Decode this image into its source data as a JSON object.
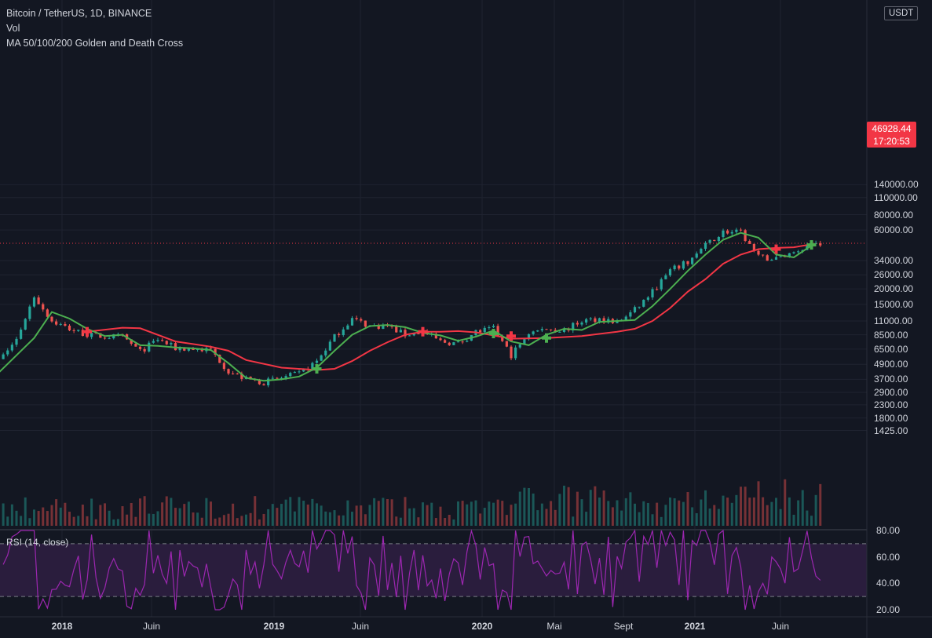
{
  "header": {
    "symbol_line": "Bitcoin / TetherUS, 1D, BINANCE",
    "volume_label": "Vol",
    "indicator_label": "MA 50/100/200 Golden and Death Cross"
  },
  "currency": "USDT",
  "last_price": "46928.44",
  "countdown": "17:20:53",
  "colors": {
    "background": "#131722",
    "up": "#26a69a",
    "down": "#ef5350",
    "ma_fast": "#4caf50",
    "ma_slow": "#f23645",
    "rsi": "#9c27b0",
    "rsi_band": "#2a1d3d"
  },
  "rsi": {
    "label": "RSI (14, close)",
    "ticks": [
      "80.00",
      "60.00",
      "40.00",
      "20.00"
    ],
    "upper": 70,
    "lower": 30
  },
  "chart_data": {
    "type": "line",
    "scale": "log",
    "y_ticks": [
      "140000.00",
      "110000.00",
      "80000.00",
      "60000.00",
      "46928.44",
      "34000.00",
      "26000.00",
      "20000.00",
      "15000.00",
      "11000.00",
      "8500.00",
      "6500.00",
      "4900.00",
      "3700.00",
      "2900.00",
      "2300.00",
      "1800.00",
      "1425.00"
    ],
    "x_ticks": [
      "2018",
      "Juin",
      "2019",
      "Juin",
      "2020",
      "Mai",
      "Sept",
      "2021",
      "Juin"
    ],
    "price_points": [
      [
        "2017-09",
        4200
      ],
      [
        "2017-10",
        5200
      ],
      [
        "2017-11",
        7800
      ],
      [
        "2017-12",
        17500
      ],
      [
        "2018-01",
        11000
      ],
      [
        "2018-02",
        9500
      ],
      [
        "2018-03",
        8500
      ],
      [
        "2018-04",
        8200
      ],
      [
        "2018-05",
        8200
      ],
      [
        "2018-06",
        6200
      ],
      [
        "2018-07",
        7800
      ],
      [
        "2018-08",
        6600
      ],
      [
        "2018-09",
        6500
      ],
      [
        "2018-10",
        6400
      ],
      [
        "2018-11",
        4300
      ],
      [
        "2018-12",
        3700
      ],
      [
        "2019-01",
        3500
      ],
      [
        "2019-02",
        3800
      ],
      [
        "2019-03",
        4100
      ],
      [
        "2019-04",
        5200
      ],
      [
        "2019-05",
        8200
      ],
      [
        "2019-06",
        11500
      ],
      [
        "2019-07",
        10000
      ],
      [
        "2019-08",
        10000
      ],
      [
        "2019-09",
        8500
      ],
      [
        "2019-10",
        9000
      ],
      [
        "2019-11",
        7500
      ],
      [
        "2019-12",
        7200
      ],
      [
        "2020-01",
        9000
      ],
      [
        "2020-02",
        9500
      ],
      [
        "2020-03",
        5800
      ],
      [
        "2020-04",
        8800
      ],
      [
        "2020-05",
        9500
      ],
      [
        "2020-06",
        9200
      ],
      [
        "2020-07",
        11000
      ],
      [
        "2020-08",
        11500
      ],
      [
        "2020-09",
        10700
      ],
      [
        "2020-10",
        13500
      ],
      [
        "2020-11",
        19000
      ],
      [
        "2020-12",
        28000
      ],
      [
        "2021-01",
        33000
      ],
      [
        "2021-02",
        45000
      ],
      [
        "2021-03",
        58000
      ],
      [
        "2021-04",
        57000
      ],
      [
        "2021-05",
        36000
      ],
      [
        "2021-06",
        35000
      ],
      [
        "2021-07",
        40000
      ],
      [
        "2021-08",
        47000
      ]
    ],
    "series": [
      {
        "values": [
          [
            "2017-10",
            4200
          ],
          [
            "2017-12",
            8000
          ],
          [
            "2018-01",
            13000
          ],
          [
            "2018-02",
            11500
          ],
          [
            "2018-03",
            9500
          ],
          [
            "2018-04",
            8300
          ],
          [
            "2018-05",
            8500
          ],
          [
            "2018-06",
            7000
          ],
          [
            "2018-07",
            6900
          ],
          [
            "2018-08",
            6700
          ],
          [
            "2018-09",
            6600
          ],
          [
            "2018-10",
            6400
          ],
          [
            "2018-11",
            5000
          ],
          [
            "2018-12",
            3800
          ],
          [
            "2019-01",
            3600
          ],
          [
            "2019-02",
            3700
          ],
          [
            "2019-03",
            3900
          ],
          [
            "2019-04",
            4600
          ],
          [
            "2019-05",
            6300
          ],
          [
            "2019-06",
            8500
          ],
          [
            "2019-07",
            10000
          ],
          [
            "2019-08",
            10200
          ],
          [
            "2019-09",
            9800
          ],
          [
            "2019-10",
            8800
          ],
          [
            "2019-11",
            8400
          ],
          [
            "2019-12",
            7600
          ],
          [
            "2020-01",
            8200
          ],
          [
            "2020-02",
            9200
          ],
          [
            "2020-03",
            7500
          ],
          [
            "2020-04",
            7000
          ],
          [
            "2020-05",
            8500
          ],
          [
            "2020-06",
            9500
          ],
          [
            "2020-07",
            9300
          ],
          [
            "2020-08",
            10800
          ],
          [
            "2020-09",
            11000
          ],
          [
            "2020-10",
            11200
          ],
          [
            "2020-11",
            14500
          ],
          [
            "2020-12",
            20000
          ],
          [
            "2021-01",
            28000
          ],
          [
            "2021-02",
            38000
          ],
          [
            "2021-03",
            50000
          ],
          [
            "2021-04",
            57000
          ],
          [
            "2021-05",
            52000
          ],
          [
            "2021-06",
            38000
          ],
          [
            "2021-07",
            36000
          ],
          [
            "2021-08",
            45000
          ]
        ]
      },
      {
        "values": [
          [
            "2018-03",
            9000
          ],
          [
            "2018-05",
            9700
          ],
          [
            "2018-06",
            9600
          ],
          [
            "2018-08",
            7500
          ],
          [
            "2018-10",
            6800
          ],
          [
            "2018-11",
            6300
          ],
          [
            "2018-12",
            5300
          ],
          [
            "2019-02",
            4600
          ],
          [
            "2019-04",
            4400
          ],
          [
            "2019-05",
            4500
          ],
          [
            "2019-06",
            5200
          ],
          [
            "2019-07",
            6300
          ],
          [
            "2019-08",
            7400
          ],
          [
            "2019-09",
            8500
          ],
          [
            "2019-10",
            9000
          ],
          [
            "2019-11",
            9000
          ],
          [
            "2019-12",
            9100
          ],
          [
            "2020-01",
            8900
          ],
          [
            "2020-02",
            8400
          ],
          [
            "2020-03",
            7900
          ],
          [
            "2020-05",
            8000
          ],
          [
            "2020-07",
            8300
          ],
          [
            "2020-09",
            9000
          ],
          [
            "2020-10",
            9500
          ],
          [
            "2020-11",
            11000
          ],
          [
            "2020-12",
            14000
          ],
          [
            "2021-01",
            19000
          ],
          [
            "2021-02",
            24000
          ],
          [
            "2021-03",
            32000
          ],
          [
            "2021-04",
            38000
          ],
          [
            "2021-05",
            42000
          ],
          [
            "2021-06",
            43000
          ],
          [
            "2021-07",
            43500
          ],
          [
            "2021-08",
            46000
          ]
        ]
      }
    ],
    "crosses": [
      {
        "date": "2018-03",
        "price": 9000,
        "kind": "death"
      },
      {
        "date": "2019-04",
        "price": 4500,
        "kind": "golden"
      },
      {
        "date": "2019-10",
        "price": 9000,
        "kind": "death"
      },
      {
        "date": "2020-02",
        "price": 8700,
        "kind": "golden"
      },
      {
        "date": "2020-03",
        "price": 8300,
        "kind": "death"
      },
      {
        "date": "2020-05",
        "price": 8000,
        "kind": "golden"
      },
      {
        "date": "2021-06",
        "price": 42000,
        "kind": "death"
      },
      {
        "date": "2021-08",
        "price": 45500,
        "kind": "golden"
      }
    ],
    "grid": true
  }
}
